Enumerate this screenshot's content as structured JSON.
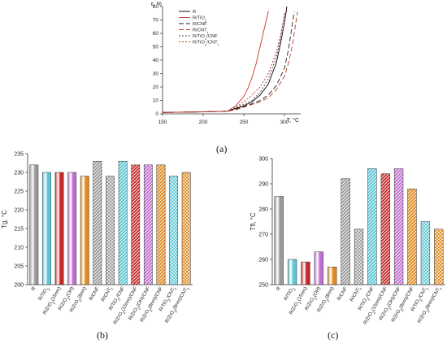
{
  "panel_labels": {
    "a": "(a)",
    "b": "(b)",
    "c": "(c)"
  },
  "chart_data": [
    {
      "panel": "(a)",
      "type": "line",
      "xlabel": "T, ",
      "xlabel_unit": "°C",
      "ylabel": "ε, %",
      "xlim": [
        150,
        320
      ],
      "ylim": [
        0,
        80
      ],
      "x_ticks": [
        150,
        200,
        250,
        300
      ],
      "y_ticks": [
        0,
        10,
        20,
        30,
        40,
        50,
        60,
        70,
        80
      ],
      "legend_position": "top-left",
      "series": [
        {
          "name": "R",
          "color": "#000000",
          "dash": "",
          "x": [
            150,
            200,
            230,
            240,
            250,
            260,
            270,
            280,
            290,
            295,
            300,
            303
          ],
          "y": [
            1,
            1.5,
            2,
            4,
            6,
            9,
            14,
            22,
            38,
            52,
            68,
            80
          ]
        },
        {
          "name": "R/TiO2",
          "color": "#c0392b",
          "dash": "",
          "x": [
            150,
            200,
            230,
            240,
            250,
            255,
            260,
            265,
            270,
            275,
            280,
            281
          ],
          "y": [
            1,
            1.5,
            2,
            6,
            13,
            19,
            27,
            37,
            50,
            63,
            76,
            76
          ]
        },
        {
          "name": "R/CNF",
          "color": "#222222",
          "dash": "6,3",
          "x": [
            150,
            200,
            230,
            240,
            250,
            260,
            270,
            280,
            290,
            300,
            305,
            310,
            312
          ],
          "y": [
            1,
            1.5,
            2,
            3.5,
            5.5,
            7.5,
            10,
            14,
            21,
            34,
            48,
            68,
            76
          ]
        },
        {
          "name": "R/CNTf",
          "color": "#c0392b",
          "dash": "6,3",
          "x": [
            150,
            200,
            230,
            240,
            250,
            260,
            270,
            280,
            290,
            300,
            305,
            310,
            315,
            316
          ],
          "y": [
            1,
            1.5,
            2,
            3,
            5,
            7,
            9,
            12,
            18,
            28,
            38,
            52,
            72,
            76
          ]
        },
        {
          "name": "R/TiO2/CNF",
          "color": "#444444",
          "dash": "2,2",
          "x": [
            150,
            200,
            230,
            240,
            250,
            260,
            270,
            280,
            290,
            295,
            300,
            301
          ],
          "y": [
            1,
            1.5,
            2,
            4.5,
            7,
            10,
            16,
            26,
            42,
            56,
            74,
            76
          ]
        },
        {
          "name": "R/TiO2/CNTf",
          "color": "#c0392b",
          "dash": "2,2",
          "x": [
            150,
            200,
            230,
            240,
            250,
            260,
            270,
            280,
            290,
            295,
            300,
            303
          ],
          "y": [
            1,
            1.5,
            2,
            5,
            9,
            14,
            20,
            30,
            46,
            58,
            74,
            76
          ]
        }
      ]
    },
    {
      "panel": "(b)",
      "type": "bar",
      "ylabel": "Tg, ",
      "ylabel_unit": "°C",
      "ylim": [
        200,
        235
      ],
      "y_ticks": [
        200,
        205,
        210,
        215,
        220,
        225,
        230,
        235
      ],
      "categories": [
        "R",
        "R/TiO2",
        "R/ZrO2(15nm)",
        "R/ZrO2(OH)",
        "R/ZrO2(8nm)",
        "R/CNF",
        "R/CNTf",
        "R/TiO2/CNF",
        "R/ZrO2(15nm)/CNF",
        "R/ZrO2(OH)/CNF",
        "R/ZrO2(8nm)/CNF",
        "R/TiO2/CNTf",
        "R/ZrO2(8nm)/CNTf"
      ],
      "values": [
        232,
        230,
        230,
        230,
        229,
        233,
        229,
        233,
        232,
        232,
        232,
        229,
        230
      ]
    },
    {
      "panel": "(c)",
      "type": "bar",
      "ylabel": "Tfl, ",
      "ylabel_unit": "°C",
      "ylim": [
        250,
        300
      ],
      "y_ticks": [
        250,
        260,
        270,
        280,
        290,
        300
      ],
      "categories": [
        "R",
        "R/TiO2",
        "R/ZrO2(15nm)",
        "R/ZrO2(OH)",
        "R/ZrO2(8nm)",
        "R/CNF",
        "R/CNTf",
        "R/TiO2/CNF",
        "R/ZrO2(15nm)/CNF",
        "R/ZrO2(OH)/CNF",
        "R/ZrO2(8nm)/CNF",
        "R/TiO2/CNTf",
        "R/ZrO2(8nm)/CNTf"
      ],
      "values": [
        285,
        260,
        259,
        263,
        257,
        292,
        272,
        296,
        294,
        296,
        288,
        275,
        272
      ]
    }
  ],
  "bar_styles": [
    {
      "color": "#9a9a9a",
      "pattern": "metal-gray"
    },
    {
      "color": "#5cc6d6",
      "pattern": "metal-cyan"
    },
    {
      "color": "#c62828",
      "pattern": "metal-red"
    },
    {
      "color": "#c06fd0",
      "pattern": "metal-violet"
    },
    {
      "color": "#e08a1e",
      "pattern": "metal-orange"
    },
    {
      "color": "#9a9a9a",
      "pattern": "diag-gray"
    },
    {
      "color": "#9a9a9a",
      "pattern": "cross-gray"
    },
    {
      "color": "#5cc6d6",
      "pattern": "diag-cyan"
    },
    {
      "color": "#c62828",
      "pattern": "diag-red"
    },
    {
      "color": "#c06fd0",
      "pattern": "diag-violet"
    },
    {
      "color": "#e08a1e",
      "pattern": "diag-orange"
    },
    {
      "color": "#5cc6d6",
      "pattern": "cross-cyan"
    },
    {
      "color": "#e08a1e",
      "pattern": "cross-orange"
    }
  ]
}
